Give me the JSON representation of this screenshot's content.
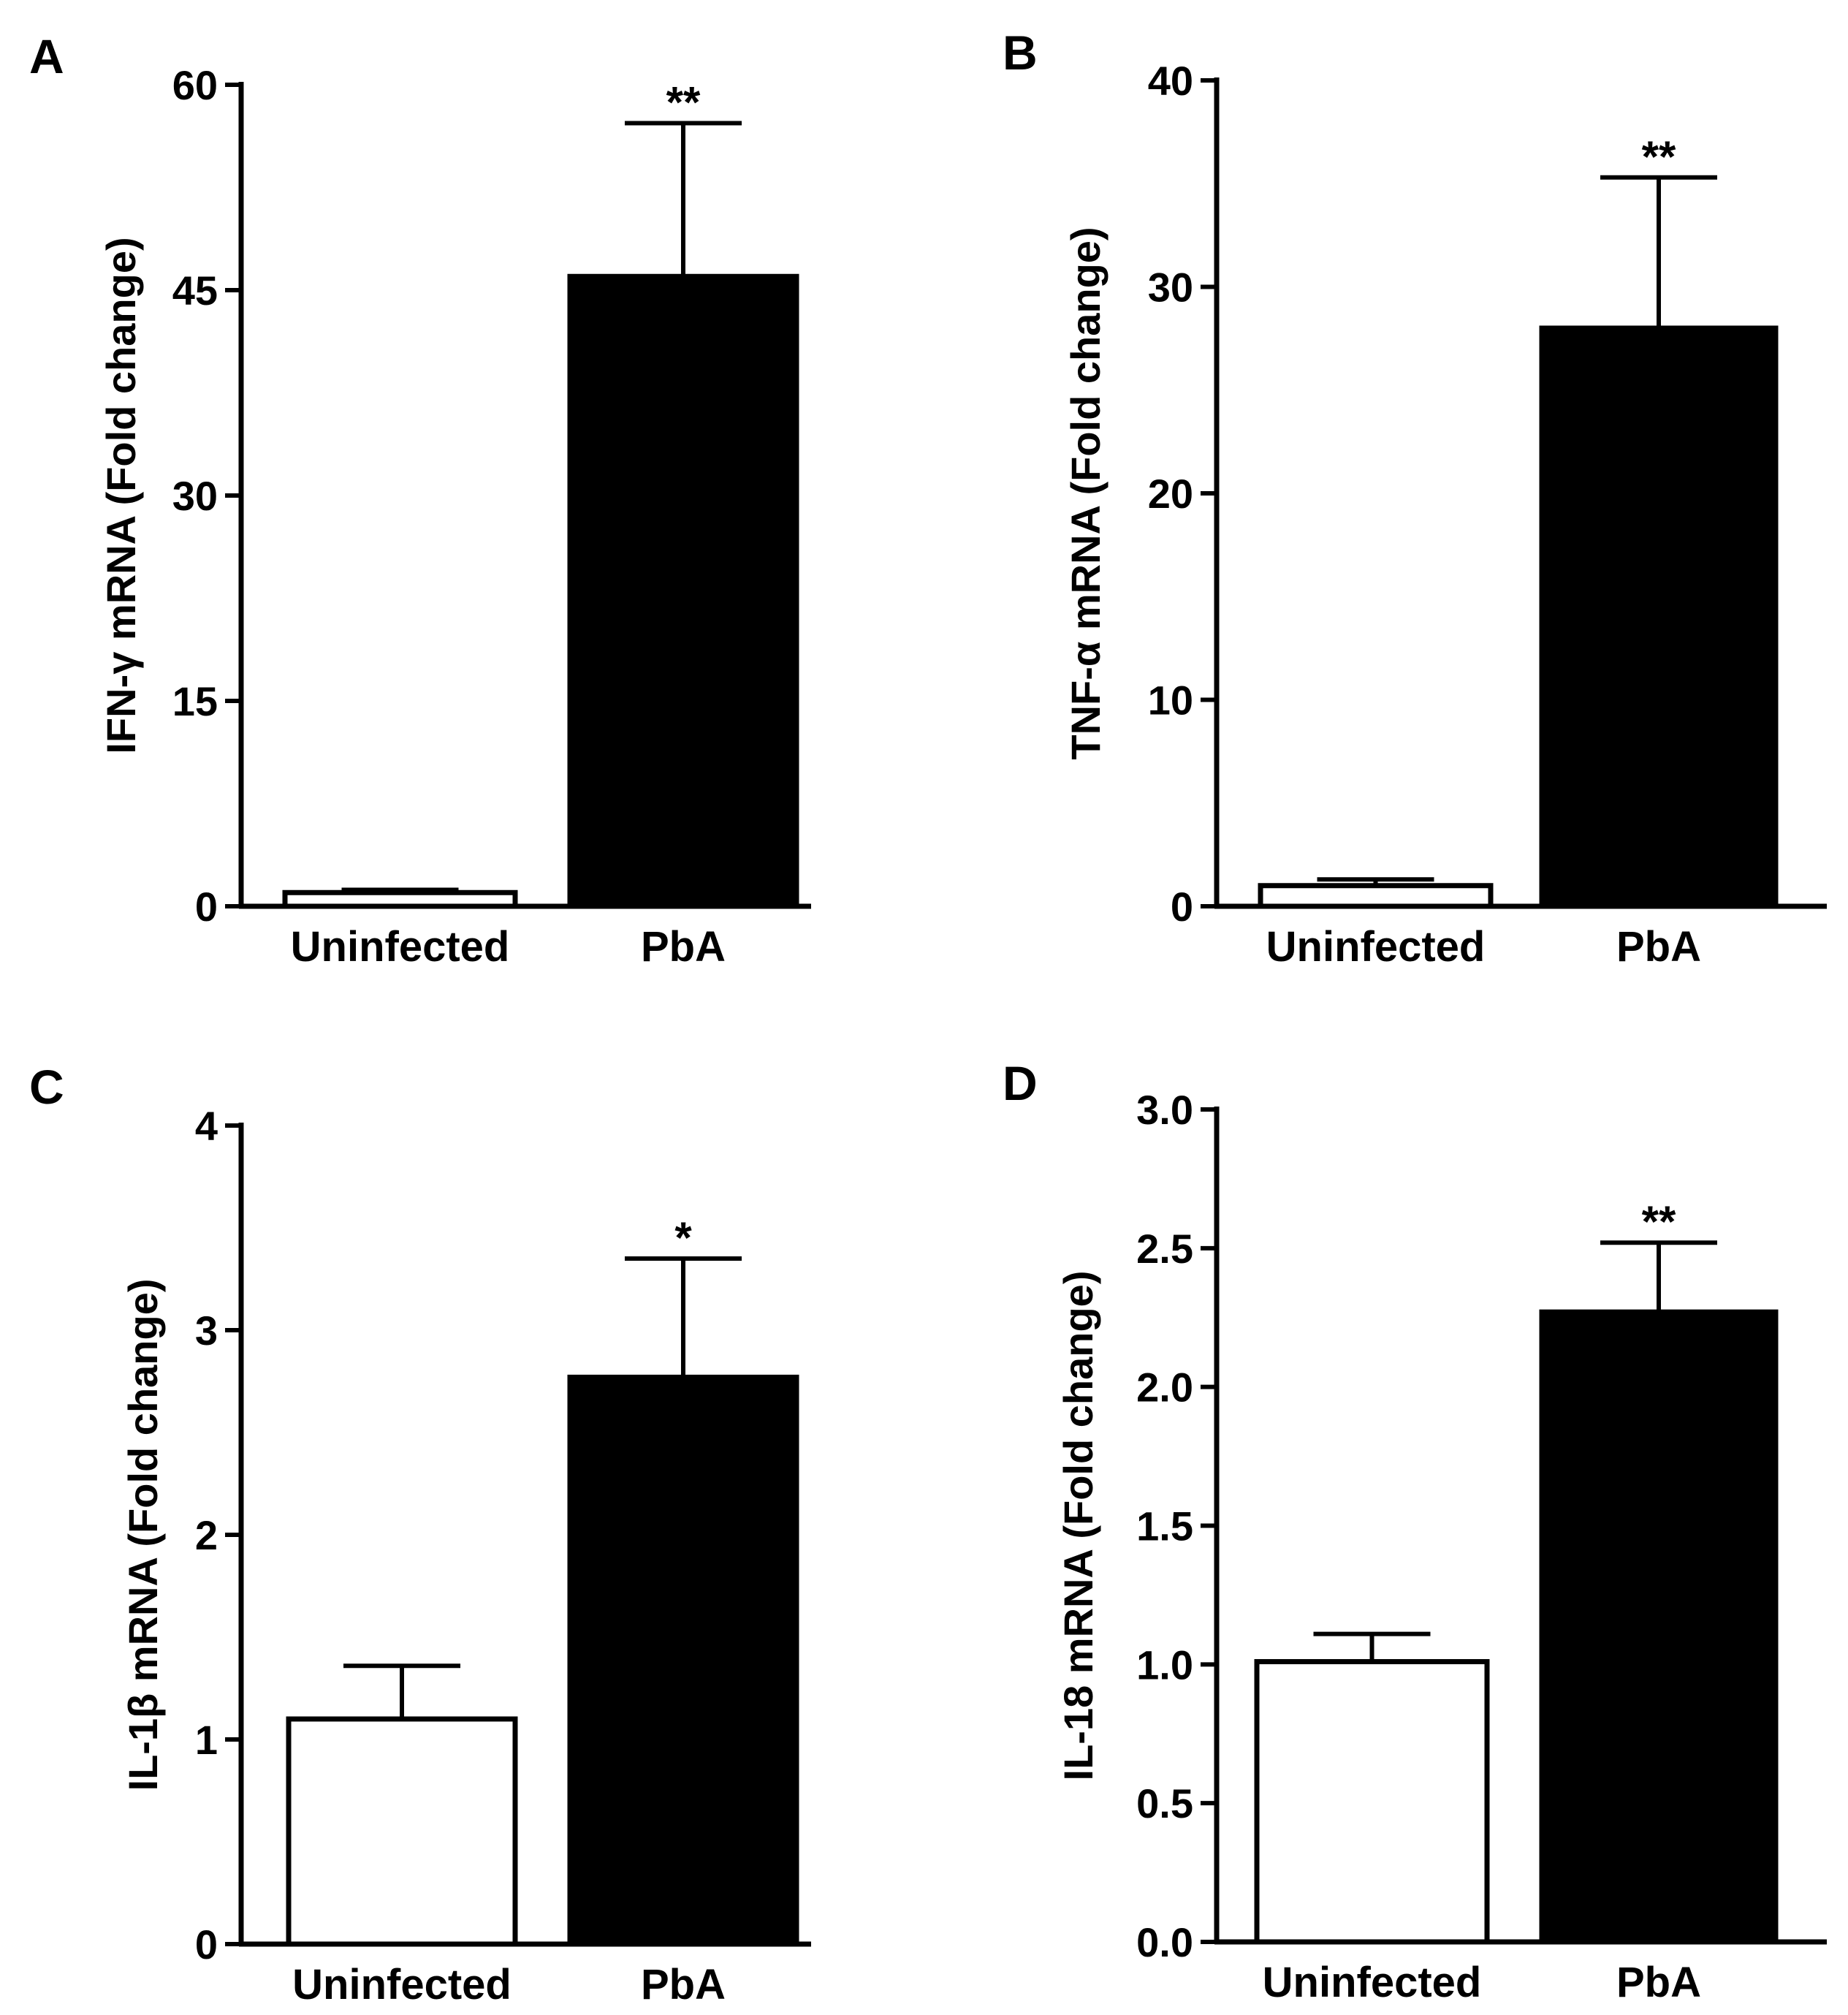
{
  "chart_data": [
    {
      "panel": "A",
      "type": "bar",
      "categories": [
        "Uninfected",
        "PbA"
      ],
      "values": [
        1.0,
        46.0
      ],
      "errors": [
        0.2,
        11.2
      ],
      "colors": [
        "#ffffff",
        "#000000"
      ],
      "significance": [
        "",
        "**"
      ],
      "ylabel": "IFN-γ mRNA (Fold change)",
      "ylim": [
        0,
        60
      ],
      "yticks": [
        0,
        15,
        30,
        45,
        60
      ],
      "ytick_labels": [
        "0",
        "15",
        "30",
        "45",
        "60"
      ]
    },
    {
      "panel": "B",
      "type": "bar",
      "categories": [
        "Uninfected",
        "PbA"
      ],
      "values": [
        1.0,
        28.0
      ],
      "errors": [
        0.3,
        7.3
      ],
      "colors": [
        "#ffffff",
        "#000000"
      ],
      "significance": [
        "",
        "**"
      ],
      "ylabel": "TNF-α mRNA (Fold change)",
      "ylim": [
        0,
        40
      ],
      "yticks": [
        0,
        10,
        20,
        30,
        40
      ],
      "ytick_labels": [
        "0",
        "10",
        "20",
        "30",
        "40"
      ]
    },
    {
      "panel": "C",
      "type": "bar",
      "categories": [
        "Uninfected",
        "PbA"
      ],
      "values": [
        1.1,
        2.77
      ],
      "errors": [
        0.26,
        0.58
      ],
      "colors": [
        "#ffffff",
        "#000000"
      ],
      "significance": [
        "",
        "*"
      ],
      "ylabel": "IL-1β mRNA (Fold change)",
      "ylim": [
        0,
        4
      ],
      "yticks": [
        0,
        1,
        2,
        3,
        4
      ],
      "ytick_labels": [
        "0",
        "1",
        "2",
        "3",
        "4"
      ]
    },
    {
      "panel": "D",
      "type": "bar",
      "categories": [
        "Uninfected",
        "PbA"
      ],
      "values": [
        1.01,
        2.27
      ],
      "errors": [
        0.1,
        0.25
      ],
      "colors": [
        "#ffffff",
        "#000000"
      ],
      "significance": [
        "",
        "**"
      ],
      "ylabel": "IL-18 mRNA (Fold change)",
      "ylim": [
        0,
        3
      ],
      "yticks": [
        0,
        0.5,
        1,
        1.5,
        2,
        2.5,
        3
      ],
      "ytick_labels": [
        "0.0",
        "0.5",
        "1.0",
        "1.5",
        "2.0",
        "2.5",
        "3.0"
      ]
    }
  ]
}
